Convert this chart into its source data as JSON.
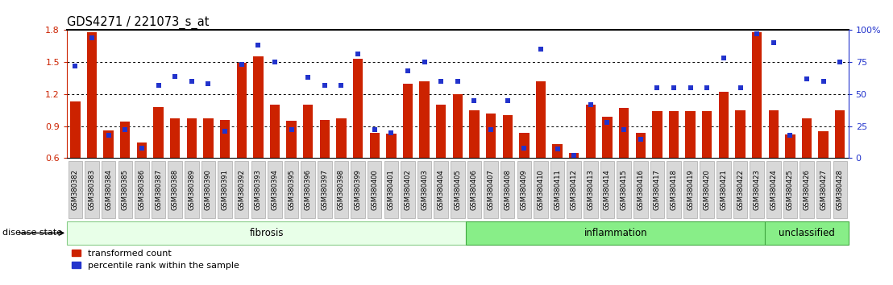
{
  "title": "GDS4271 / 221073_s_at",
  "samples": [
    "GSM380382",
    "GSM380383",
    "GSM380384",
    "GSM380385",
    "GSM380386",
    "GSM380387",
    "GSM380388",
    "GSM380389",
    "GSM380390",
    "GSM380391",
    "GSM380392",
    "GSM380393",
    "GSM380394",
    "GSM380395",
    "GSM380396",
    "GSM380397",
    "GSM380398",
    "GSM380399",
    "GSM380400",
    "GSM380401",
    "GSM380402",
    "GSM380403",
    "GSM380404",
    "GSM380405",
    "GSM380406",
    "GSM380407",
    "GSM380408",
    "GSM380409",
    "GSM380410",
    "GSM380411",
    "GSM380412",
    "GSM380413",
    "GSM380414",
    "GSM380415",
    "GSM380416",
    "GSM380417",
    "GSM380418",
    "GSM380419",
    "GSM380420",
    "GSM380421",
    "GSM380422",
    "GSM380423",
    "GSM380424",
    "GSM380425",
    "GSM380426",
    "GSM380427",
    "GSM380428"
  ],
  "bar_values": [
    1.13,
    1.78,
    0.86,
    0.94,
    0.75,
    1.08,
    0.97,
    0.97,
    0.97,
    0.96,
    1.49,
    1.55,
    1.1,
    0.95,
    1.1,
    0.96,
    0.97,
    1.53,
    0.84,
    0.83,
    1.3,
    1.32,
    1.1,
    1.2,
    1.05,
    1.02,
    1.0,
    0.84,
    1.32,
    0.73,
    0.65,
    1.1,
    0.99,
    1.07,
    0.84,
    1.04,
    1.04,
    1.04,
    1.04,
    1.22,
    1.05,
    1.78,
    1.05,
    0.82,
    0.97,
    0.85,
    1.05
  ],
  "dot_values_pct": [
    72,
    94,
    18,
    22,
    8,
    57,
    64,
    60,
    58,
    21,
    73,
    88,
    75,
    22,
    63,
    57,
    57,
    81,
    22,
    20,
    68,
    75,
    60,
    60,
    45,
    22,
    45,
    8,
    85,
    7,
    2,
    42,
    28,
    22,
    15,
    55,
    55,
    55,
    55,
    78,
    55,
    97,
    90,
    18,
    62,
    60,
    75
  ],
  "groups": [
    {
      "label": "fibrosis",
      "start": 0,
      "end": 23,
      "facecolor": "#e8ffe8",
      "edgecolor": "#88cc88"
    },
    {
      "label": "inflammation",
      "start": 24,
      "end": 41,
      "facecolor": "#88ee88",
      "edgecolor": "#44aa44"
    },
    {
      "label": "unclassified",
      "start": 42,
      "end": 46,
      "facecolor": "#88ee88",
      "edgecolor": "#44aa44"
    }
  ],
  "ylim_left": [
    0.6,
    1.8
  ],
  "ylim_right": [
    0,
    100
  ],
  "yticks_left": [
    0.6,
    0.9,
    1.2,
    1.5,
    1.8
  ],
  "yticks_right": [
    0,
    25,
    50,
    75,
    100
  ],
  "bar_color": "#cc2200",
  "dot_color": "#2233cc",
  "bar_bottom": 0.6,
  "hline_values": [
    0.9,
    1.2,
    1.5
  ],
  "disease_state_label": "disease state",
  "legend_labels": [
    "transformed count",
    "percentile rank within the sample"
  ],
  "ticklabel_bg": "#d8d8d8",
  "ticklabel_edge": "#aaaaaa"
}
